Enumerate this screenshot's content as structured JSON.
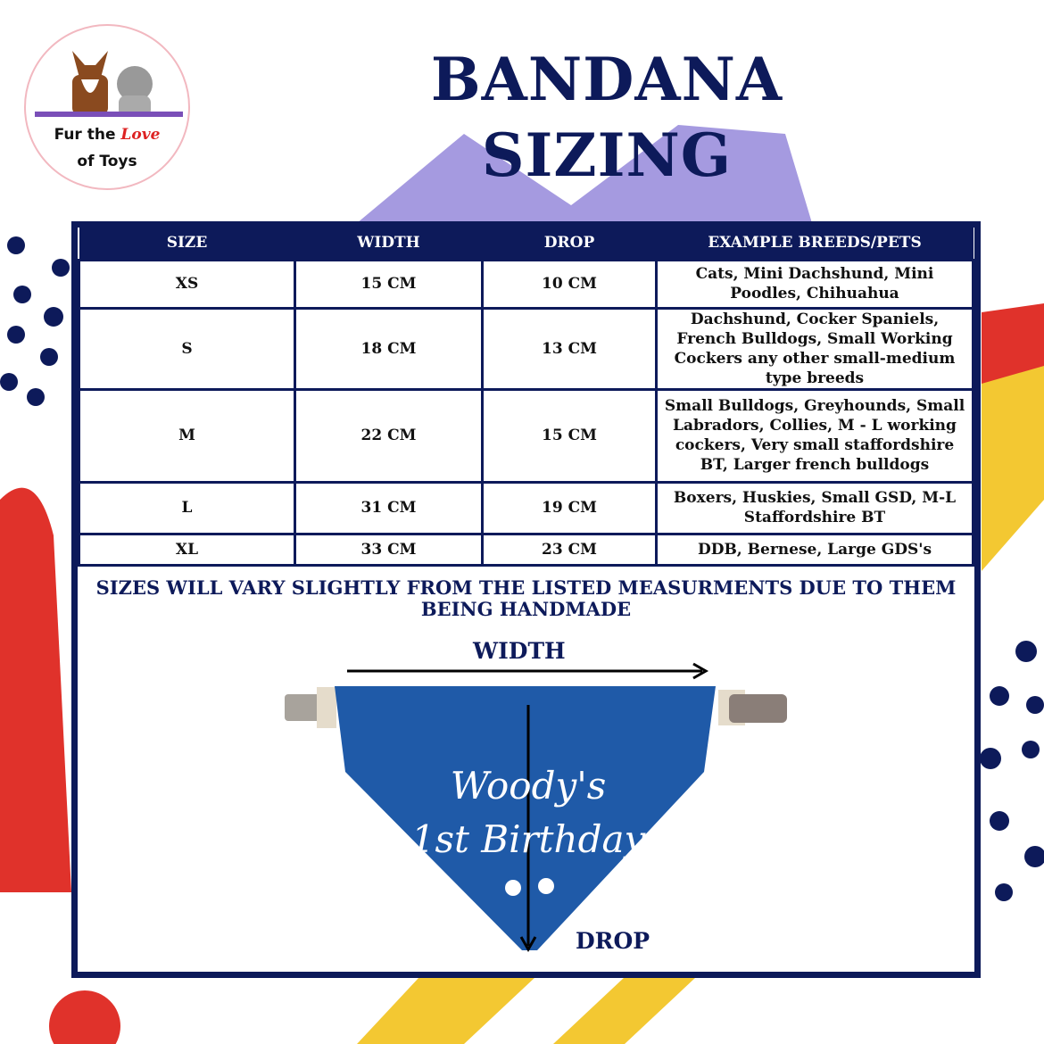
{
  "logo": {
    "line1": "Fur the",
    "line1_accent": "Love",
    "line2": "of Toys"
  },
  "title": {
    "line1": "BANDANA",
    "line2": "SIZING"
  },
  "table": {
    "headers": [
      "SIZE",
      "WIDTH",
      "DROP",
      "EXAMPLE BREEDS/PETS"
    ],
    "rows": [
      [
        "XS",
        "15 CM",
        "10 CM",
        "Cats, Mini Dachshund, Mini Poodles, Chihuahua"
      ],
      [
        "S",
        "18 CM",
        "13 CM",
        "Dachshund, Cocker Spaniels, French Bulldogs, Small Working Cockers any other small-medium type breeds"
      ],
      [
        "M",
        "22 CM",
        "15 CM",
        "Small Bulldogs, Greyhounds, Small Labradors, Collies, M - L working cockers, Very small staffordshire BT, Larger french bulldogs"
      ],
      [
        "L",
        "31 CM",
        "19 CM",
        "Boxers, Huskies, Small GSD, M-L Staffordshire BT"
      ],
      [
        "XL",
        "33 CM",
        "23 CM",
        "DDB, Bernese, Large GDS's"
      ]
    ]
  },
  "note": "SIZES WILL VARY SLIGHTLY FROM THE LISTED MEASURMENTS DUE TO THEM BEING HANDMADE",
  "diagram": {
    "width_label": "WIDTH",
    "drop_label": "DROP",
    "bandana_text_line1": "Woody's",
    "bandana_text_line2": "1st Birthday"
  },
  "colors": {
    "navy": "#0d1a5a",
    "purple": "#a59ae0",
    "red": "#e0322b",
    "yellow": "#f3c832",
    "bandana": "#1f5aa8"
  }
}
